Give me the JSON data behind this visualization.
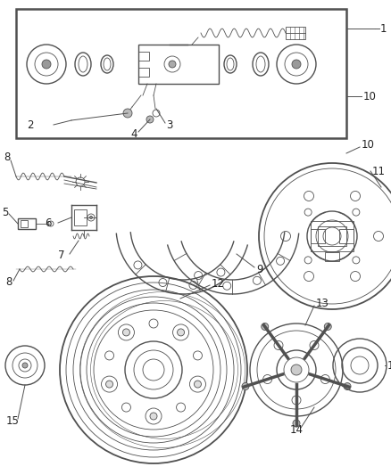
{
  "bg_color": "#ffffff",
  "line_color": "#505050",
  "lw_main": 1.0,
  "lw_thin": 0.6,
  "label_fontsize": 8.5
}
